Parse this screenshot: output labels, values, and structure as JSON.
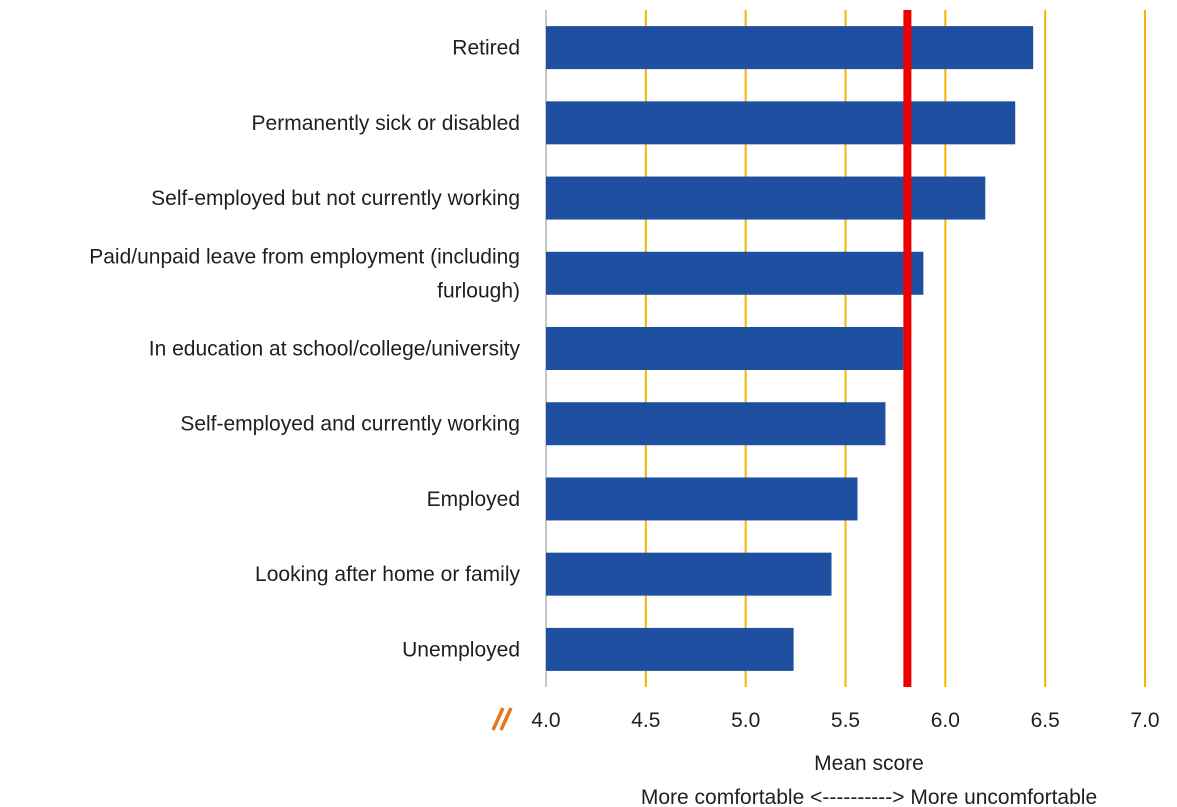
{
  "chart_data": {
    "type": "bar",
    "orientation": "horizontal",
    "title": "",
    "categories": [
      "Retired",
      "Permanently sick or disabled",
      "Self-employed but not currently working",
      "Paid/unpaid leave from employment (including furlough)",
      "In education at school/college/university",
      "Self-employed and currently working",
      "Employed",
      "Looking after home or family",
      "Unemployed"
    ],
    "category_lines": [
      [
        "Retired"
      ],
      [
        "Permanently sick or disabled"
      ],
      [
        "Self-employed but not currently working"
      ],
      [
        "Paid/unpaid leave from employment (including",
        "furlough)"
      ],
      [
        "In education at school/college/university"
      ],
      [
        "Self-employed and currently working"
      ],
      [
        "Employed"
      ],
      [
        "Looking after home or family"
      ],
      [
        "Unemployed"
      ]
    ],
    "values": [
      6.44,
      6.35,
      6.2,
      5.89,
      5.79,
      5.7,
      5.56,
      5.43,
      5.24
    ],
    "xlim": [
      4.0,
      7.0
    ],
    "xticks": [
      "4.0",
      "4.5",
      "5.0",
      "5.5",
      "6.0",
      "6.5",
      "7.0"
    ],
    "xlabel": "Mean score",
    "xlabel_sub": "More comfortable <----------> More uncomfortable",
    "reference_line": 5.81,
    "axis_break": true,
    "grid": "vertical",
    "colors": {
      "bar": "#1f4fa0",
      "grid": "#f2b600",
      "reference": "#ee0000",
      "axis": "#c8c8c8",
      "break_mark": "#e8761b"
    }
  }
}
